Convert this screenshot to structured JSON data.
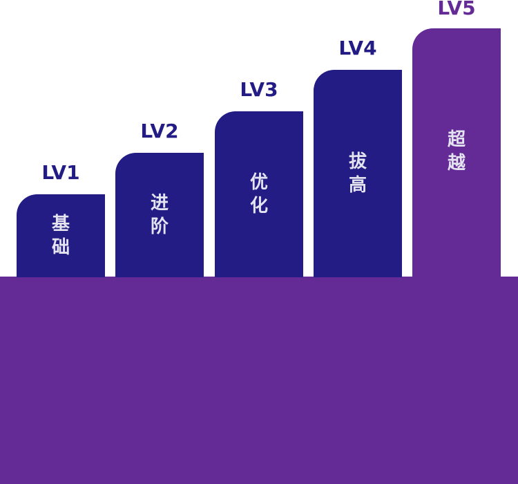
{
  "colors": {
    "navy": "#231c84",
    "purple": "#642a96",
    "label_light": "#e4e4f0"
  },
  "steps": [
    {
      "level": "LV1",
      "label": "基础",
      "color": "#231c84"
    },
    {
      "level": "LV2",
      "label": "进阶",
      "color": "#231c84"
    },
    {
      "level": "LV3",
      "label": "优化",
      "color": "#231c84"
    },
    {
      "level": "LV4",
      "label": "拔高",
      "color": "#231c84"
    },
    {
      "level": "LV5",
      "label": "超越",
      "color": "#642a96"
    }
  ]
}
